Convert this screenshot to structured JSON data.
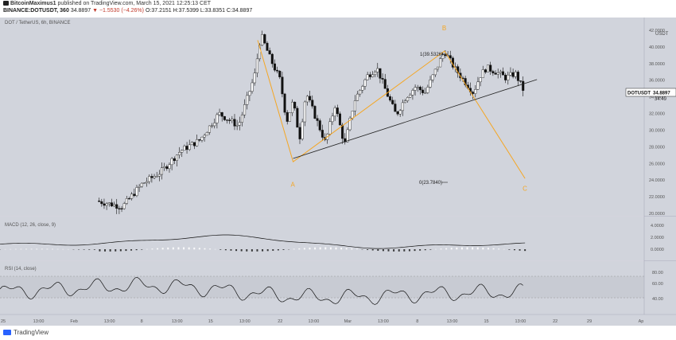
{
  "header": {
    "publisher": "BitcoinMaximus1",
    "published_text": "published on TradingView.com, March 15, 2021 12:25:13 CET",
    "symbol_line": "BINANCE:DOTUSDT, 360",
    "last": "34.8897",
    "change": "▼ −1.5530 (−4.26%)",
    "ohlc": "O:37.2151 H:37.5399 L:33.8351 C:34.8897"
  },
  "price_pane": {
    "legend": "DOT / TetherUS, 6h, BINANCE",
    "currency": "USDT",
    "price_tag": "DOTUSDT",
    "price_tag_value": "34.8897",
    "countdown": "34:49",
    "fib_top": "1(39.5326)",
    "fib_bottom": "0(23.7840)",
    "points": [
      "A",
      "B",
      "C"
    ],
    "ylim": [
      20,
      42
    ],
    "yticks": [
      "42.0000",
      "40.0000",
      "38.0000",
      "36.0000",
      "34.0000",
      "32.0000",
      "30.0000",
      "28.0000",
      "26.0000",
      "24.0000",
      "22.0000",
      "20.0000"
    ]
  },
  "macd_pane": {
    "legend": "MACD (12, 26, close, 9)",
    "yticks": [
      "4.0000",
      "2.0000",
      "0.0000"
    ]
  },
  "rsi_pane": {
    "legend": "RSI (14, close)",
    "yticks": [
      "80.00",
      "60.00",
      "40.00"
    ]
  },
  "xaxis": {
    "labels": [
      {
        "t": "25",
        "x": 0.0
      },
      {
        "t": "13:00",
        "x": 0.055
      },
      {
        "t": "Feb",
        "x": 0.11
      },
      {
        "t": "13:00",
        "x": 0.165
      },
      {
        "t": "8",
        "x": 0.215
      },
      {
        "t": "13:00",
        "x": 0.27
      },
      {
        "t": "15",
        "x": 0.322
      },
      {
        "t": "13:00",
        "x": 0.375
      },
      {
        "t": "22",
        "x": 0.43
      },
      {
        "t": "13:00",
        "x": 0.482
      },
      {
        "t": "Mar",
        "x": 0.535
      },
      {
        "t": "13:00",
        "x": 0.59
      },
      {
        "t": "8",
        "x": 0.643
      },
      {
        "t": "13:00",
        "x": 0.697
      },
      {
        "t": "15",
        "x": 0.75
      },
      {
        "t": "13:00",
        "x": 0.803
      },
      {
        "t": "22",
        "x": 0.857
      },
      {
        "t": "29",
        "x": 0.91
      },
      {
        "t": "Ap",
        "x": 1.0
      }
    ]
  },
  "footer": {
    "brand": "TradingView"
  },
  "colors": {
    "bg": "#d1d4dc",
    "candle_up": "#ffffff",
    "candle_down": "#111111",
    "wave": "#f5a623",
    "trendline": "#222222",
    "label_orange": "#f5a623"
  },
  "chart_data": {
    "type": "candlestick",
    "series_note": "",
    "price_path": [
      [
        0.15,
        21.5
      ],
      [
        0.19,
        20.8
      ],
      [
        0.22,
        23.5
      ],
      [
        0.25,
        25.0
      ],
      [
        0.28,
        27.5
      ],
      [
        0.31,
        28.8
      ],
      [
        0.34,
        32.0
      ],
      [
        0.37,
        30.5
      ],
      [
        0.395,
        36.5
      ],
      [
        0.405,
        41.5
      ],
      [
        0.42,
        38.5
      ],
      [
        0.435,
        36.0
      ],
      [
        0.445,
        31.0
      ],
      [
        0.455,
        33.5
      ],
      [
        0.465,
        29.0
      ],
      [
        0.475,
        34.5
      ],
      [
        0.49,
        31.5
      ],
      [
        0.505,
        28.5
      ],
      [
        0.52,
        33.0
      ],
      [
        0.535,
        28.2
      ],
      [
        0.55,
        33.5
      ],
      [
        0.57,
        36.5
      ],
      [
        0.585,
        37.5
      ],
      [
        0.6,
        34.5
      ],
      [
        0.615,
        31.8
      ],
      [
        0.63,
        34.0
      ],
      [
        0.645,
        35.2
      ],
      [
        0.66,
        34.5
      ],
      [
        0.675,
        37.0
      ],
      [
        0.69,
        39.5
      ],
      [
        0.705,
        37.5
      ],
      [
        0.72,
        36.0
      ],
      [
        0.735,
        34.5
      ],
      [
        0.745,
        36.5
      ],
      [
        0.755,
        37.5
      ],
      [
        0.77,
        37.0
      ],
      [
        0.785,
        36.3
      ],
      [
        0.8,
        36.8
      ],
      [
        0.812,
        34.9
      ]
    ],
    "wave_points": [
      {
        "label": "",
        "x": 0.4,
        "y": 40.8
      },
      {
        "label": "A",
        "x": 0.455,
        "y": 26.2
      },
      {
        "label": "B",
        "x": 0.69,
        "y": 39.5
      },
      {
        "label": "C",
        "x": 0.815,
        "y": 24.2
      }
    ],
    "support_line": [
      [
        0.455,
        26.6
      ],
      [
        0.815,
        35.8
      ]
    ]
  }
}
